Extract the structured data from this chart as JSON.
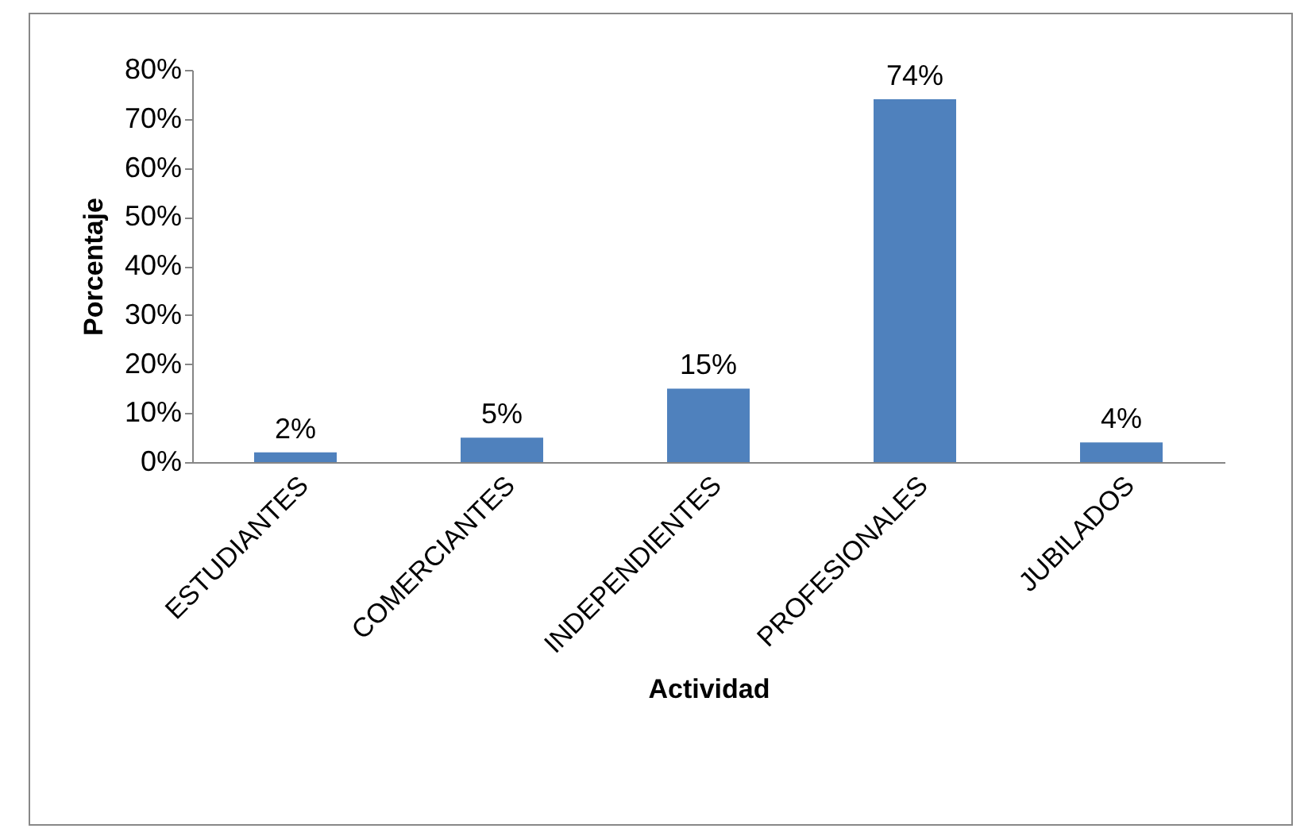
{
  "chart_data": {
    "type": "bar",
    "xlabel": "Actividad",
    "ylabel": "Porcentaje",
    "categories": [
      "ESTUDIANTES",
      "COMERCIANTES",
      "INDEPENDIENTES",
      "PROFESIONALES",
      "JUBILADOS"
    ],
    "values": [
      2,
      5,
      15,
      74,
      4
    ],
    "color": "#4f81bd",
    "value_labels": [
      "2%",
      "5%",
      "15%",
      "74%",
      "4%"
    ],
    "ylim": [
      0,
      80
    ],
    "yticks": [
      {
        "value": 0,
        "label": "0%"
      },
      {
        "value": 10,
        "label": "10%"
      },
      {
        "value": 20,
        "label": "20%"
      },
      {
        "value": 30,
        "label": "30%"
      },
      {
        "value": 40,
        "label": "40%"
      },
      {
        "value": 50,
        "label": "50%"
      },
      {
        "value": 60,
        "label": "60%"
      },
      {
        "value": 70,
        "label": "70%"
      },
      {
        "value": 80,
        "label": "80%"
      }
    ],
    "grid": false
  }
}
